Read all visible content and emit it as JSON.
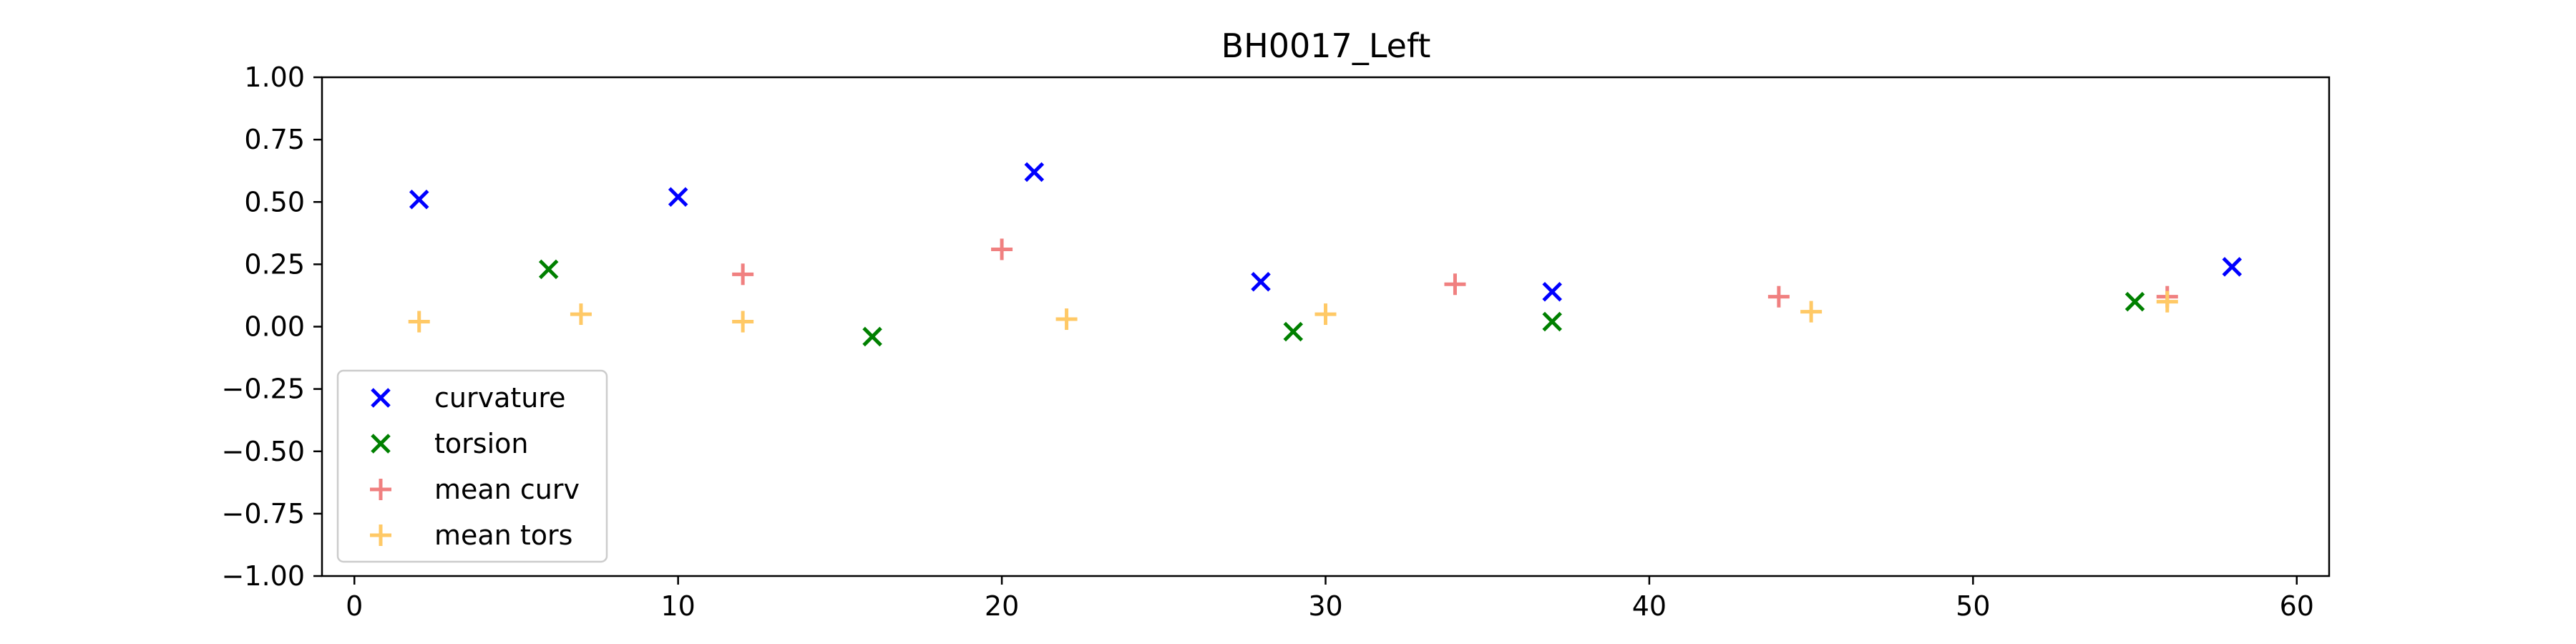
{
  "chart_data": {
    "type": "scatter",
    "title": "BH0017_Left",
    "xlabel": "",
    "ylabel": "",
    "xlim": [
      -1,
      61
    ],
    "ylim": [
      -1.0,
      1.0
    ],
    "x_ticks": [
      0,
      10,
      20,
      30,
      40,
      50,
      60
    ],
    "x_tick_labels": [
      "0",
      "10",
      "20",
      "30",
      "40",
      "50",
      "60"
    ],
    "y_ticks": [
      1.0,
      0.75,
      0.5,
      0.25,
      0.0,
      -0.25,
      -0.5,
      -0.75,
      -1.0
    ],
    "y_tick_labels": [
      "1.00",
      "0.75",
      "0.50",
      "0.25",
      "0.00",
      "−0.25",
      "−0.50",
      "−0.75",
      "−1.00"
    ],
    "grid": false,
    "legend_position": "lower-left",
    "series": [
      {
        "name": "curvature",
        "marker": "x",
        "color": "#0000ff",
        "points": [
          {
            "x": 2,
            "y": 0.51
          },
          {
            "x": 10,
            "y": 0.52
          },
          {
            "x": 21,
            "y": 0.62
          },
          {
            "x": 28,
            "y": 0.18
          },
          {
            "x": 37,
            "y": 0.14
          },
          {
            "x": 58,
            "y": 0.24
          }
        ]
      },
      {
        "name": "torsion",
        "marker": "x",
        "color": "#008000",
        "points": [
          {
            "x": 6,
            "y": 0.23
          },
          {
            "x": 16,
            "y": -0.04
          },
          {
            "x": 29,
            "y": -0.02
          },
          {
            "x": 37,
            "y": 0.02
          },
          {
            "x": 55,
            "y": 0.1
          }
        ]
      },
      {
        "name": "mean curv",
        "marker": "plus",
        "color": "#f08080",
        "points": [
          {
            "x": 12,
            "y": 0.21
          },
          {
            "x": 20,
            "y": 0.31
          },
          {
            "x": 34,
            "y": 0.17
          },
          {
            "x": 44,
            "y": 0.12
          },
          {
            "x": 56,
            "y": 0.12
          }
        ]
      },
      {
        "name": "mean tors",
        "marker": "plus",
        "color": "#ffc966",
        "points": [
          {
            "x": 2,
            "y": 0.02
          },
          {
            "x": 7,
            "y": 0.05
          },
          {
            "x": 12,
            "y": 0.02
          },
          {
            "x": 22,
            "y": 0.03
          },
          {
            "x": 30,
            "y": 0.05
          },
          {
            "x": 45,
            "y": 0.06
          },
          {
            "x": 56,
            "y": 0.1
          }
        ]
      }
    ]
  }
}
